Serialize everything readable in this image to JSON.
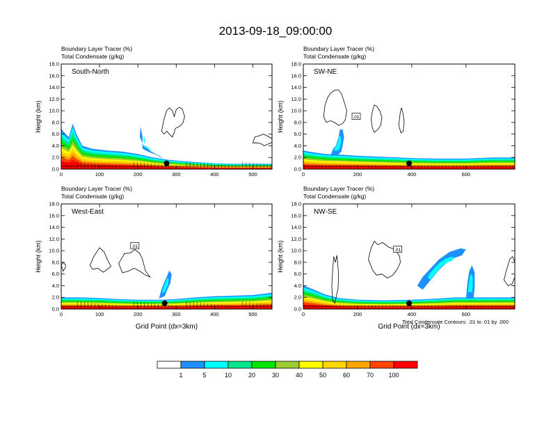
{
  "title": "2013-09-18_09:00:00",
  "colors": {
    "levels": [
      "#ffffff",
      "#1e90ff",
      "#00ffff",
      "#00e68c",
      "#00e600",
      "#9acd32",
      "#ffff00",
      "#ffd700",
      "#ffa500",
      "#ff4500",
      "#ff0000"
    ]
  },
  "colorbar": {
    "labels": [
      "1",
      "5",
      "10",
      "20",
      "30",
      "40",
      "50",
      "60",
      "70",
      "100"
    ],
    "colors": [
      "#ffffff",
      "#1e90ff",
      "#00ffff",
      "#00e68c",
      "#00e600",
      "#9acd32",
      "#ffff00",
      "#ffd700",
      "#ffa500",
      "#ff4500",
      "#ff0000"
    ]
  },
  "footnote": "Total Condensate Contours: .01 to .01 by .000",
  "chart_data": [
    {
      "type": "contour",
      "id": "south-north",
      "panel_label": "South-North",
      "left_string_1": "Boundary Layer Tracer    (%)",
      "left_string_2": "Total Condensate    (g/kg)",
      "ylabel": "Height (km)",
      "xlabel": "",
      "xlim": [
        0,
        550
      ],
      "ylim": [
        0,
        18
      ],
      "x_ticks": [
        0,
        100,
        200,
        300,
        400,
        500
      ],
      "y_ticks": [
        "0.0",
        "2.0",
        "4.0",
        "6.0",
        "8.0",
        "10.0",
        "12.0",
        "14.0",
        "16.0",
        "18.0"
      ],
      "marker": {
        "x": 275,
        "y": 1.0
      },
      "tracer_profile": [
        [
          0,
          7.0
        ],
        [
          5,
          6.5
        ],
        [
          12,
          6.0
        ],
        [
          20,
          5.5
        ],
        [
          30,
          7.8
        ],
        [
          40,
          6.0
        ],
        [
          55,
          4.0
        ],
        [
          80,
          3.5
        ],
        [
          120,
          3.2
        ],
        [
          160,
          3.0
        ],
        [
          200,
          2.6
        ],
        [
          240,
          2.0
        ],
        [
          280,
          1.6
        ],
        [
          330,
          1.3
        ],
        [
          400,
          1.0
        ],
        [
          450,
          0.9
        ],
        [
          500,
          0.9
        ],
        [
          550,
          0.9
        ]
      ],
      "blobs": [
        [
          [
            205,
            5.5
          ],
          [
            207,
            7.3
          ],
          [
            212,
            5.6
          ],
          [
            212,
            3.5
          ],
          [
            230,
            2.9
          ],
          [
            250,
            2.4
          ],
          [
            265,
            1.8
          ],
          [
            258,
            2.2
          ],
          [
            235,
            3.0
          ],
          [
            215,
            4.0
          ],
          [
            205,
            5.5
          ]
        ]
      ],
      "cloud_contours": [
        [
          [
            262,
            6.5
          ],
          [
            268,
            8.5
          ],
          [
            275,
            10.0
          ],
          [
            282,
            10.5
          ],
          [
            290,
            10.0
          ],
          [
            295,
            9.0
          ],
          [
            300,
            10.2
          ],
          [
            308,
            10.6
          ],
          [
            316,
            10.3
          ],
          [
            322,
            9.0
          ],
          [
            318,
            8.0
          ],
          [
            312,
            7.5
          ],
          [
            305,
            7.2
          ],
          [
            298,
            7.0
          ],
          [
            295,
            6.3
          ],
          [
            290,
            5.5
          ],
          [
            282,
            6.0
          ],
          [
            276,
            6.5
          ],
          [
            268,
            6.0
          ],
          [
            262,
            6.5
          ]
        ],
        [
          [
            500,
            4.5
          ],
          [
            505,
            5.5
          ],
          [
            515,
            5.7
          ],
          [
            528,
            6.0
          ],
          [
            540,
            5.6
          ],
          [
            550,
            5.2
          ],
          [
            550,
            4.6
          ],
          [
            540,
            4.3
          ],
          [
            530,
            4.0
          ],
          [
            520,
            4.4
          ],
          [
            510,
            4.5
          ],
          [
            500,
            4.5
          ]
        ]
      ]
    },
    {
      "type": "contour",
      "id": "sw-ne",
      "panel_label": "SW-NE",
      "left_string_1": "Boundary Layer Tracer    (%)",
      "left_string_2": "Total Condensate    (g/kg)",
      "ylabel": "Height (km)",
      "xlabel": "",
      "xlim": [
        0,
        780
      ],
      "ylim": [
        0,
        18
      ],
      "x_ticks": [
        0,
        200,
        400,
        600
      ],
      "y_ticks": [
        "0.0",
        "2.0",
        "4.0",
        "6.0",
        "8.0",
        "10.0",
        "12.0",
        "14.0",
        "16.0",
        "18.0"
      ],
      "marker": {
        "x": 390,
        "y": 1.0
      },
      "tracer_profile": [
        [
          0,
          3.2
        ],
        [
          20,
          3.0
        ],
        [
          50,
          2.8
        ],
        [
          80,
          2.6
        ],
        [
          130,
          2.5
        ],
        [
          200,
          2.3
        ],
        [
          300,
          2.1
        ],
        [
          400,
          1.9
        ],
        [
          500,
          1.8
        ],
        [
          600,
          1.8
        ],
        [
          700,
          2.0
        ],
        [
          780,
          2.0
        ]
      ],
      "blobs": [
        [
          [
            100,
            2.3
          ],
          [
            110,
            3.5
          ],
          [
            120,
            4.0
          ],
          [
            130,
            5.5
          ],
          [
            135,
            6.8
          ],
          [
            145,
            6.8
          ],
          [
            150,
            5.5
          ],
          [
            145,
            4.0
          ],
          [
            140,
            3.0
          ],
          [
            125,
            2.3
          ],
          [
            100,
            2.3
          ]
        ]
      ],
      "cloud_contours": [
        [
          [
            75,
            9.0
          ],
          [
            80,
            11.0
          ],
          [
            90,
            12.3
          ],
          [
            100,
            13.0
          ],
          [
            115,
            13.5
          ],
          [
            128,
            13.6
          ],
          [
            140,
            13.0
          ],
          [
            150,
            11.6
          ],
          [
            160,
            10.0
          ],
          [
            155,
            8.5
          ],
          [
            145,
            7.8
          ],
          [
            130,
            7.5
          ],
          [
            115,
            8.0
          ],
          [
            100,
            8.3
          ],
          [
            85,
            8.0
          ],
          [
            75,
            9.0
          ]
        ],
        [
          [
            250,
            8.5
          ],
          [
            255,
            10.0
          ],
          [
            262,
            11.0
          ],
          [
            272,
            10.7
          ],
          [
            282,
            10.0
          ],
          [
            290,
            8.8
          ],
          [
            285,
            7.5
          ],
          [
            275,
            6.8
          ],
          [
            262,
            6.3
          ],
          [
            255,
            7.0
          ],
          [
            250,
            8.5
          ]
        ],
        [
          [
            352,
            7.5
          ],
          [
            357,
            9.5
          ],
          [
            362,
            10.5
          ],
          [
            368,
            9.5
          ],
          [
            372,
            8.0
          ],
          [
            368,
            6.5
          ],
          [
            360,
            6.2
          ],
          [
            352,
            7.5
          ]
        ]
      ],
      "contour_labels": [
        {
          "x": 195,
          "y": 9.0,
          "text": ".01"
        }
      ]
    },
    {
      "type": "contour",
      "id": "west-east",
      "panel_label": "West-East",
      "left_string_1": "Boundary Layer Tracer    (%)",
      "left_string_2": "Total Condensate    (g/kg)",
      "ylabel": "Height (km)",
      "xlabel": "Grid Point (dx=3km)",
      "xlim": [
        0,
        550
      ],
      "ylim": [
        0,
        18
      ],
      "x_ticks": [
        0,
        100,
        200,
        300,
        400,
        500
      ],
      "y_ticks": [
        "0.0",
        "2.0",
        "4.0",
        "6.0",
        "8.0",
        "10.0",
        "12.0",
        "14.0",
        "16.0",
        "18.0"
      ],
      "marker": {
        "x": 270,
        "y": 1.0
      },
      "tracer_profile": [
        [
          0,
          2.0
        ],
        [
          50,
          2.0
        ],
        [
          100,
          1.9
        ],
        [
          150,
          1.7
        ],
        [
          200,
          1.6
        ],
        [
          260,
          1.6
        ],
        [
          300,
          1.7
        ],
        [
          350,
          2.0
        ],
        [
          400,
          2.2
        ],
        [
          450,
          2.3
        ],
        [
          500,
          2.4
        ],
        [
          550,
          2.8
        ]
      ],
      "blobs": [
        [
          [
            255,
            1.8
          ],
          [
            260,
            3.0
          ],
          [
            265,
            4.0
          ],
          [
            275,
            5.5
          ],
          [
            282,
            6.6
          ],
          [
            288,
            6.0
          ],
          [
            285,
            4.5
          ],
          [
            278,
            3.5
          ],
          [
            270,
            2.2
          ],
          [
            255,
            1.8
          ]
        ]
      ],
      "cloud_contours": [
        [
          [
            0,
            7.5
          ],
          [
            5,
            8.0
          ],
          [
            12,
            7.5
          ],
          [
            10,
            7.0
          ],
          [
            5,
            6.5
          ],
          [
            0,
            7.5
          ]
        ],
        [
          [
            75,
            7.5
          ],
          [
            85,
            9.0
          ],
          [
            100,
            10.5
          ],
          [
            112,
            9.8
          ],
          [
            120,
            8.5
          ],
          [
            130,
            7.3
          ],
          [
            120,
            6.8
          ],
          [
            110,
            6.3
          ],
          [
            95,
            7.0
          ],
          [
            82,
            6.8
          ],
          [
            75,
            7.5
          ]
        ],
        [
          [
            150,
            7.8
          ],
          [
            165,
            9.5
          ],
          [
            180,
            9.6
          ],
          [
            192,
            10.2
          ],
          [
            205,
            9.5
          ],
          [
            212,
            8.5
          ],
          [
            220,
            6.5
          ],
          [
            232,
            5.5
          ],
          [
            220,
            5.8
          ],
          [
            205,
            6.5
          ],
          [
            190,
            7.0
          ],
          [
            175,
            6.5
          ],
          [
            160,
            6.2
          ],
          [
            150,
            7.8
          ]
        ]
      ],
      "contour_labels": [
        {
          "x": 192,
          "y": 10.8,
          "text": ".01"
        }
      ]
    },
    {
      "type": "contour",
      "id": "nw-se",
      "panel_label": "NW-SE",
      "left_string_1": "Boundary Layer Tracer    (%)",
      "left_string_2": "Total Condensate    (g/kg)",
      "ylabel": "Height (km)",
      "xlabel": "Grid Point (dx=3km)",
      "xlim": [
        0,
        780
      ],
      "ylim": [
        0,
        18
      ],
      "x_ticks": [
        0,
        200,
        400,
        600
      ],
      "y_ticks": [
        "0.0",
        "2.0",
        "4.0",
        "6.0",
        "8.0",
        "10.0",
        "12.0",
        "14.0",
        "16.0",
        "18.0"
      ],
      "marker": {
        "x": 390,
        "y": 1.0
      },
      "tracer_profile": [
        [
          0,
          4.0
        ],
        [
          30,
          3.5
        ],
        [
          80,
          2.5
        ],
        [
          130,
          1.9
        ],
        [
          200,
          1.6
        ],
        [
          300,
          1.5
        ],
        [
          400,
          1.6
        ],
        [
          500,
          1.8
        ],
        [
          560,
          2.0
        ],
        [
          620,
          2.0
        ],
        [
          700,
          2.0
        ],
        [
          780,
          2.0
        ]
      ],
      "blobs": [
        [
          [
            420,
            4.0
          ],
          [
            440,
            5.5
          ],
          [
            470,
            7.0
          ],
          [
            500,
            8.5
          ],
          [
            540,
            9.8
          ],
          [
            580,
            10.4
          ],
          [
            600,
            10.2
          ],
          [
            585,
            9.2
          ],
          [
            560,
            8.8
          ],
          [
            530,
            8.0
          ],
          [
            500,
            6.7
          ],
          [
            470,
            5.0
          ],
          [
            440,
            3.3
          ],
          [
            420,
            4.0
          ]
        ],
        [
          [
            600,
            1.8
          ],
          [
            605,
            4.5
          ],
          [
            612,
            6.5
          ],
          [
            622,
            7.5
          ],
          [
            632,
            6.3
          ],
          [
            632,
            3.8
          ],
          [
            628,
            1.8
          ],
          [
            600,
            1.8
          ]
        ]
      ],
      "cloud_contours": [
        [
          [
            105,
            4.0
          ],
          [
            108,
            6.5
          ],
          [
            112,
            9.0
          ],
          [
            118,
            8.0
          ],
          [
            124,
            9.2
          ],
          [
            130,
            6.0
          ],
          [
            128,
            3.5
          ],
          [
            116,
            1.0
          ],
          [
            108,
            1.5
          ],
          [
            105,
            4.0
          ]
        ],
        [
          [
            240,
            8.5
          ],
          [
            250,
            10.5
          ],
          [
            262,
            11.6
          ],
          [
            275,
            11.0
          ],
          [
            292,
            11.4
          ],
          [
            315,
            10.6
          ],
          [
            340,
            10.2
          ],
          [
            355,
            9.0
          ],
          [
            358,
            8.0
          ],
          [
            346,
            6.8
          ],
          [
            330,
            5.8
          ],
          [
            310,
            5.3
          ],
          [
            290,
            6.0
          ],
          [
            270,
            5.8
          ],
          [
            255,
            6.7
          ],
          [
            240,
            8.5
          ]
        ],
        [
          [
            740,
            5.0
          ],
          [
            750,
            6.8
          ],
          [
            762,
            8.6
          ],
          [
            772,
            9.0
          ],
          [
            780,
            8.0
          ],
          [
            780,
            5.5
          ],
          [
            770,
            4.3
          ],
          [
            755,
            4.0
          ],
          [
            740,
            5.0
          ]
        ]
      ],
      "contour_labels": [
        {
          "x": 348,
          "y": 10.2,
          "text": ".01"
        }
      ]
    }
  ]
}
